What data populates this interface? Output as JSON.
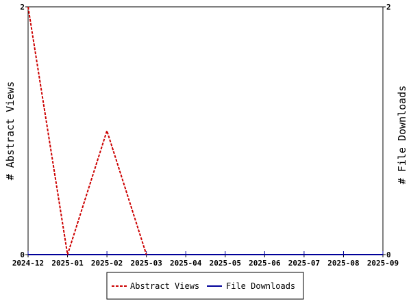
{
  "chart_data": {
    "type": "line",
    "x": [
      "2024-12",
      "2025-01",
      "2025-02",
      "2025-03",
      "2025-04",
      "2025-05",
      "2025-06",
      "2025-07",
      "2025-08",
      "2025-09"
    ],
    "ylabel_left": "# Abstract Views",
    "ylabel_right": "# File Downloads",
    "ylim_left": [
      0,
      2
    ],
    "ylim_right": [
      0,
      2
    ],
    "y_ticks_left": [
      "0",
      "2"
    ],
    "y_ticks_right": [
      "0",
      "2"
    ],
    "grid": false,
    "legend_position": "bottom-center",
    "series": [
      {
        "name": "Abstract Views",
        "axis": "left",
        "color": "#cc0000",
        "style": "dashed",
        "points": [
          {
            "x": "2024-12",
            "y": 2
          },
          {
            "x": "2025-01",
            "y": 0
          },
          {
            "x": "2025-02",
            "y": 1
          },
          {
            "x": "2025-03",
            "y": 0
          }
        ]
      },
      {
        "name": "File Downloads",
        "axis": "right",
        "color": "#000099",
        "style": "solid",
        "points": [
          {
            "x": "2024-12",
            "y": 0
          },
          {
            "x": "2025-01",
            "y": 0
          },
          {
            "x": "2025-02",
            "y": 0
          },
          {
            "x": "2025-03",
            "y": 0
          },
          {
            "x": "2025-04",
            "y": 0
          },
          {
            "x": "2025-05",
            "y": 0
          },
          {
            "x": "2025-06",
            "y": 0
          },
          {
            "x": "2025-07",
            "y": 0
          },
          {
            "x": "2025-08",
            "y": 0
          },
          {
            "x": "2025-09",
            "y": 0
          }
        ]
      }
    ]
  }
}
